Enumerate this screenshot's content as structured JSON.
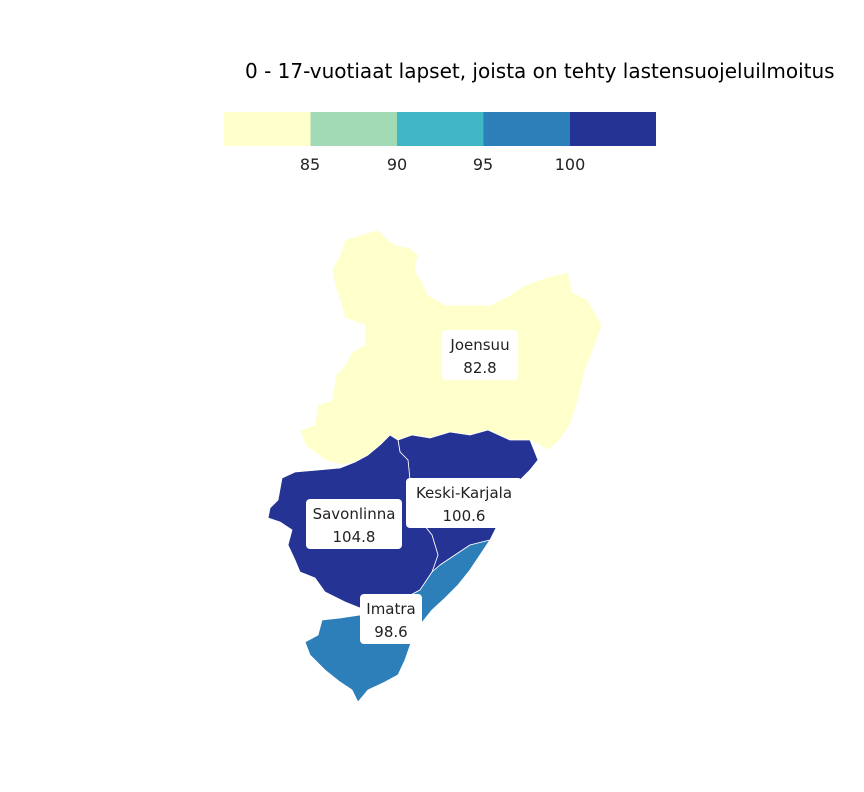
{
  "title": "0 - 17-vuotiaat lapset, joista on tehty lastensuojeluilmoitus",
  "legend": {
    "bins": [
      {
        "color": "#ffffcc"
      },
      {
        "color": "#a1dab4"
      },
      {
        "color": "#41b6c4"
      },
      {
        "color": "#2c7fb8"
      },
      {
        "color": "#253494"
      }
    ],
    "breaks": [
      "85",
      "90",
      "95",
      "100"
    ]
  },
  "regions": [
    {
      "name": "Joensuu",
      "value": "82.8",
      "color": "#ffffcc"
    },
    {
      "name": "Keski-Karjala",
      "value": "100.6",
      "color": "#253494"
    },
    {
      "name": "Savonlinna",
      "value": "104.8",
      "color": "#253494"
    },
    {
      "name": "Imatra",
      "value": "98.6",
      "color": "#2c7fb8"
    }
  ]
}
